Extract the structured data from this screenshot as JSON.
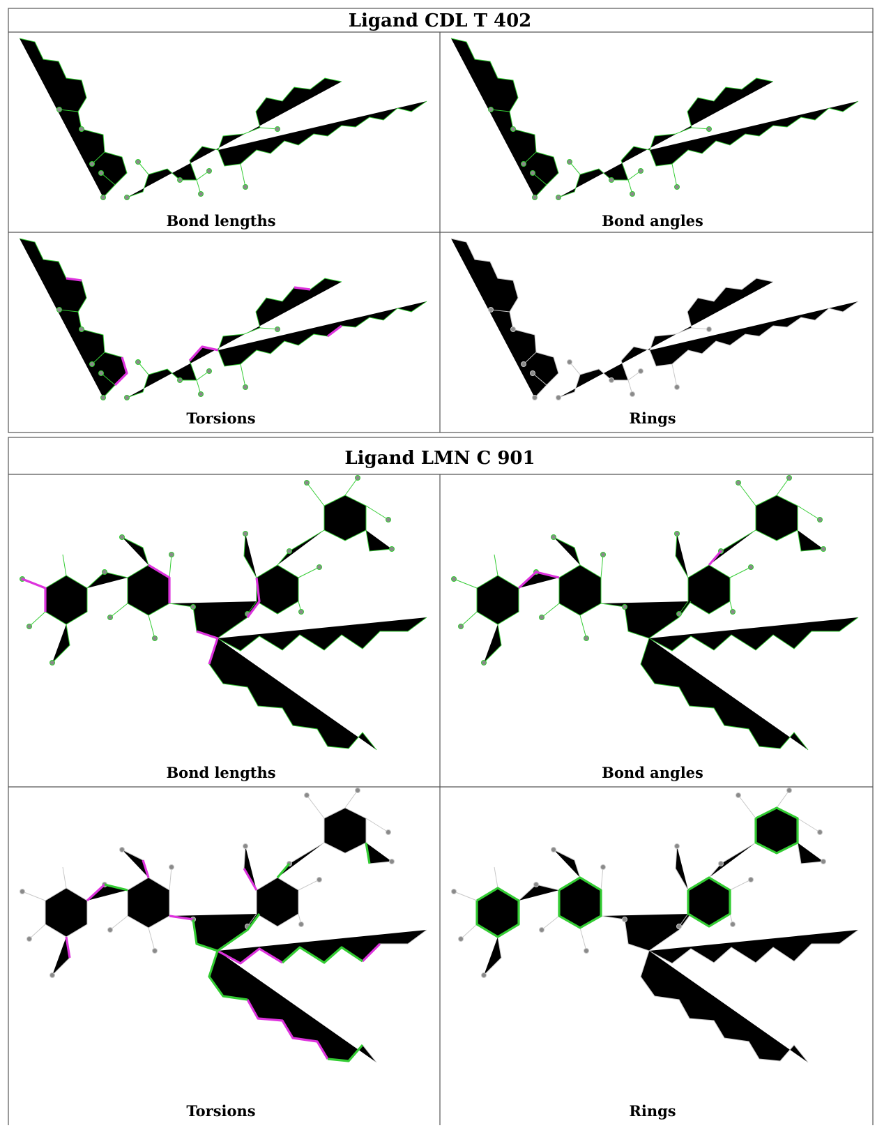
{
  "tables": [
    {
      "title": "Ligand CDL T 402",
      "cells": [
        "Bond lengths",
        "Bond angles",
        "Torsions",
        "Rings"
      ]
    },
    {
      "title": "Ligand LMN C 901",
      "cells": [
        "Bond lengths",
        "Bond angles",
        "Torsions",
        "Rings"
      ]
    }
  ]
}
